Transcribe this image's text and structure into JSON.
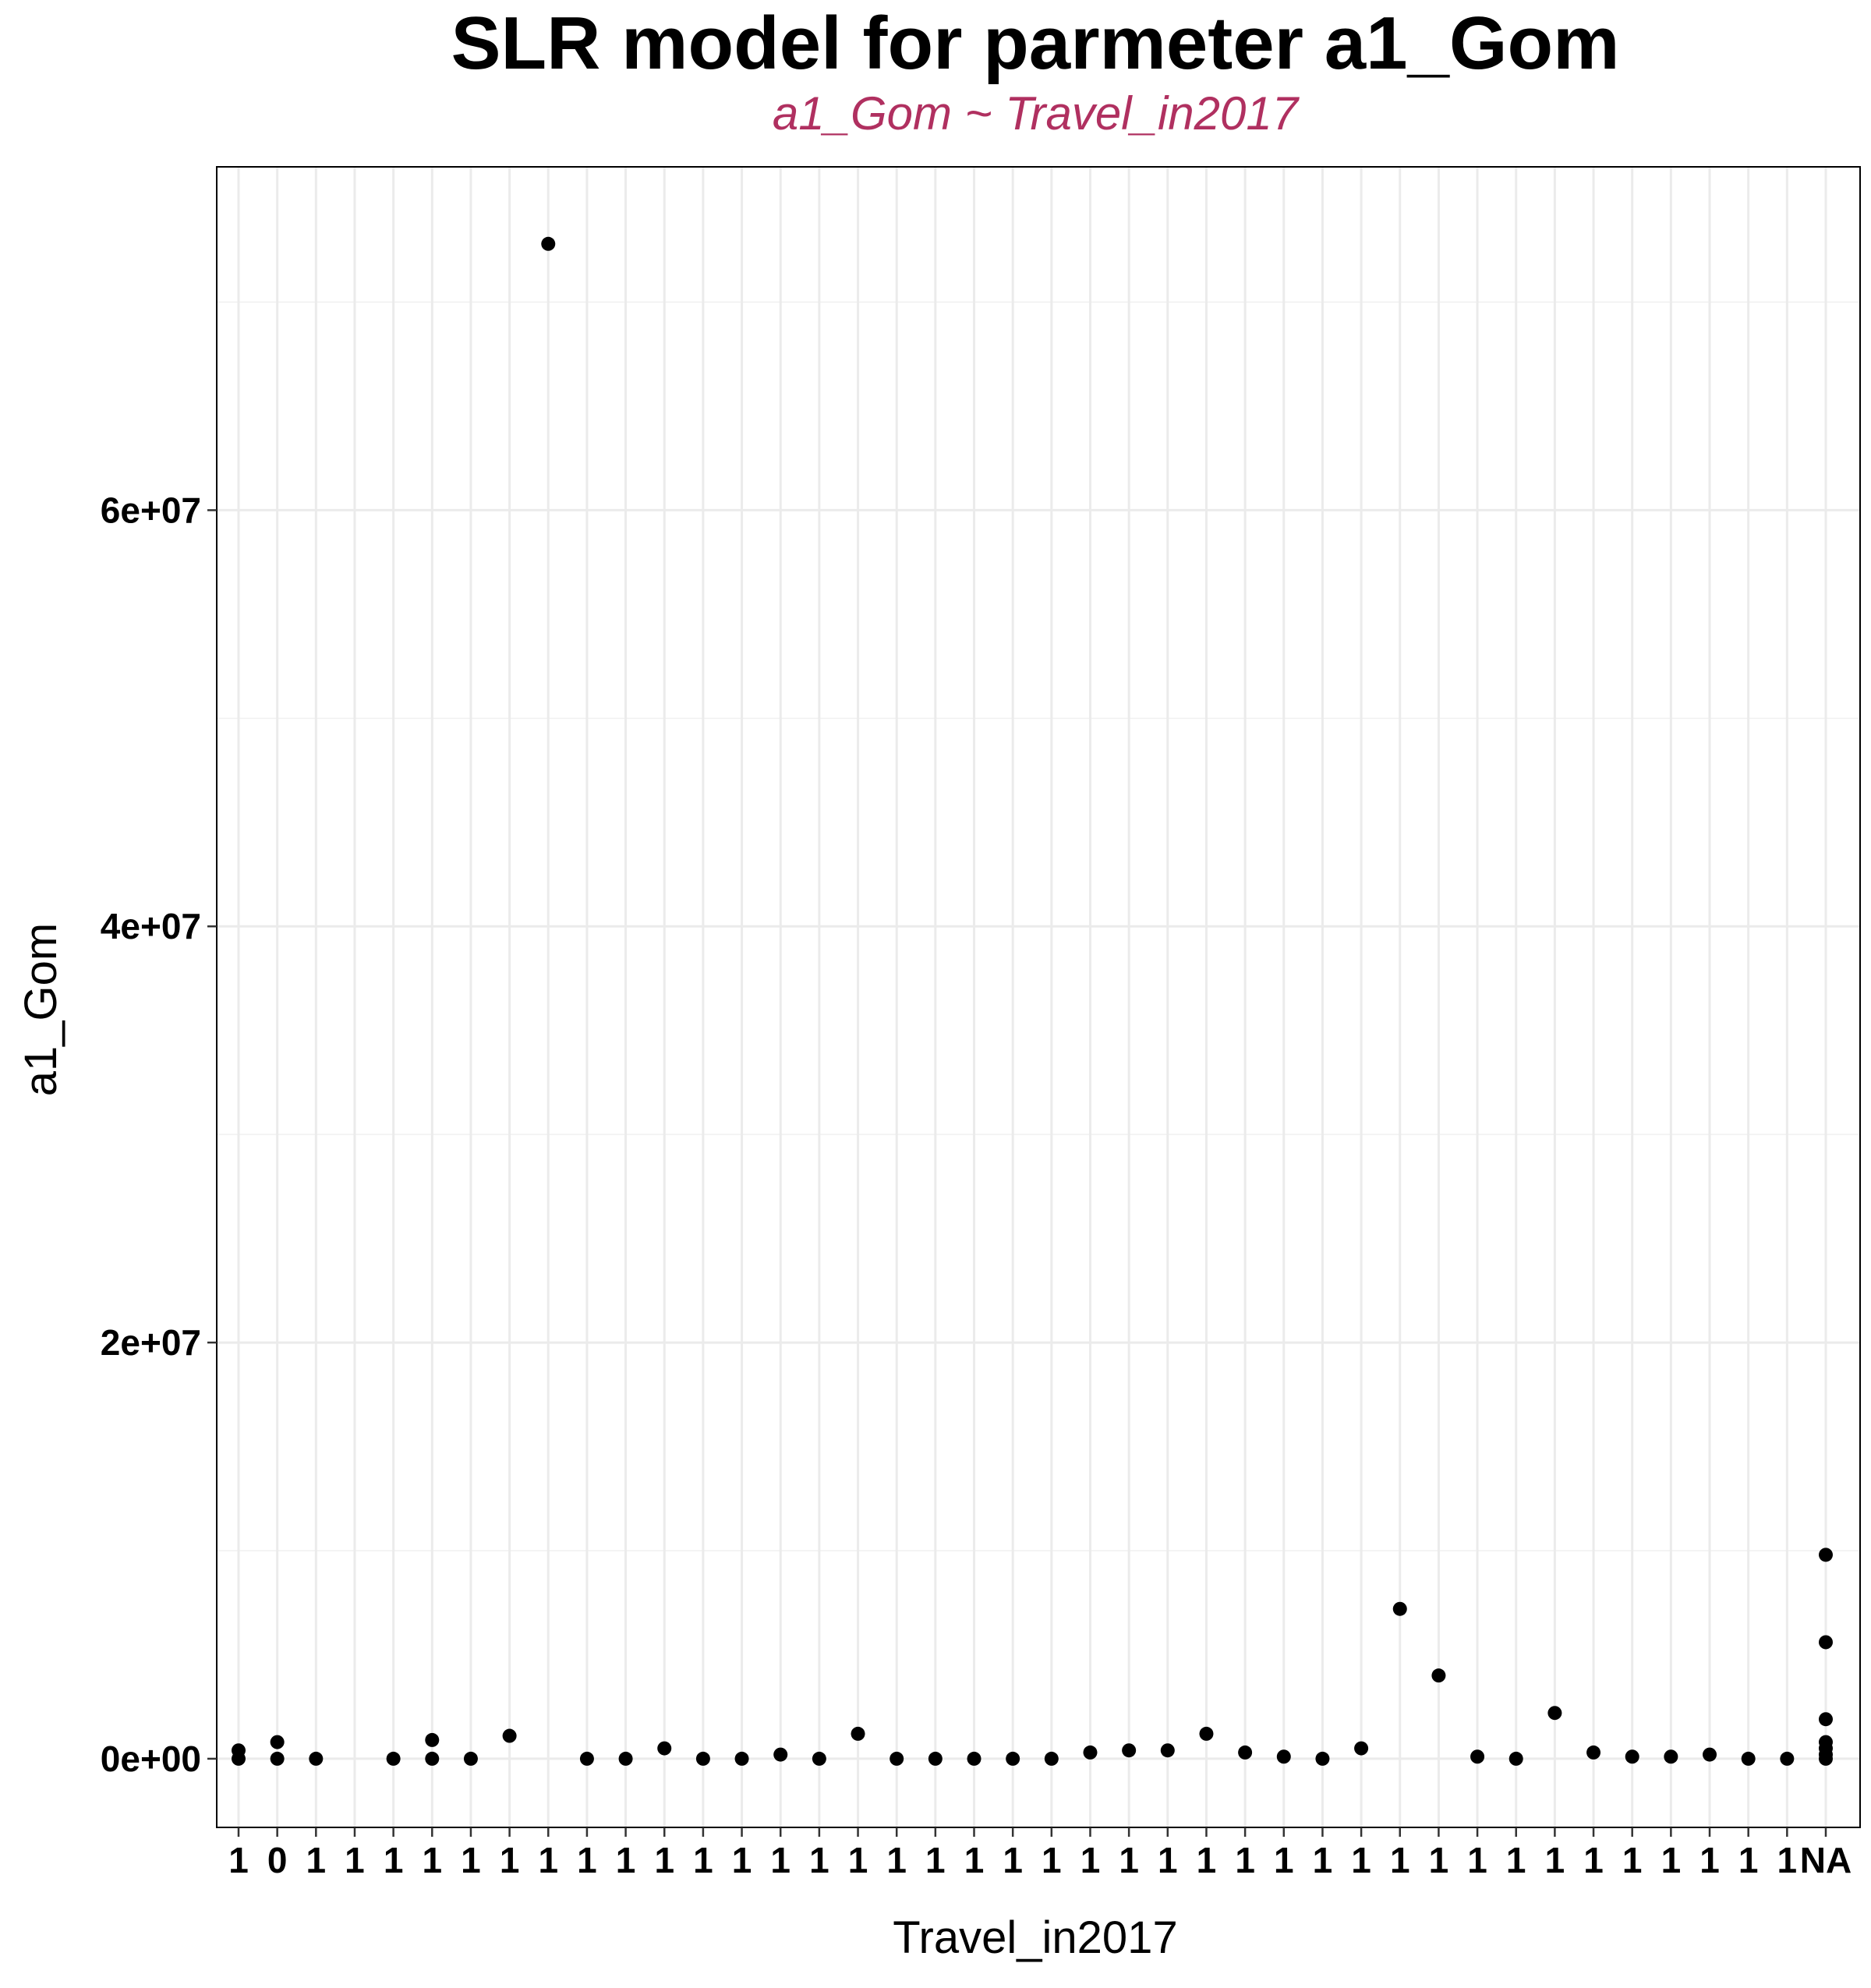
{
  "chart_data": {
    "type": "scatter",
    "title": "SLR model for parmeter a1_Gom",
    "subtitle": "a1_Gom ~ Travel_in2017",
    "xlabel": "Travel_in2017",
    "ylabel": "a1_Gom",
    "y_tick_values": [
      0,
      20000000,
      40000000,
      60000000
    ],
    "y_tick_labels": [
      "0e+00",
      "2e+07",
      "4e+07",
      "6e+07"
    ],
    "ylim": [
      -3300000,
      76500000
    ],
    "x_scale": "categorical",
    "n_categories": 42,
    "x_tick_labels": [
      "1",
      "0",
      "1",
      "1",
      "1",
      "1",
      "1",
      "1",
      "1",
      "1",
      "1",
      "1",
      "1",
      "1",
      "1",
      "1",
      "1",
      "1",
      "1",
      "1",
      "1",
      "1",
      "1",
      "1",
      "1",
      "1",
      "1",
      "1",
      "1",
      "1",
      "1",
      "1",
      "1",
      "1",
      "1",
      "1",
      "1",
      "1",
      "1",
      "1",
      "1",
      "NA"
    ],
    "points": [
      {
        "x": 1,
        "y": 400000
      },
      {
        "x": 1,
        "y": 0
      },
      {
        "x": 2,
        "y": 800000
      },
      {
        "x": 2,
        "y": 0
      },
      {
        "x": 3,
        "y": 0
      },
      {
        "x": 5,
        "y": 0
      },
      {
        "x": 6,
        "y": 900000
      },
      {
        "x": 6,
        "y": 0
      },
      {
        "x": 7,
        "y": 0
      },
      {
        "x": 8,
        "y": 1100000
      },
      {
        "x": 9,
        "y": 72800000
      },
      {
        "x": 10,
        "y": 0
      },
      {
        "x": 11,
        "y": 0
      },
      {
        "x": 12,
        "y": 500000
      },
      {
        "x": 13,
        "y": 0
      },
      {
        "x": 14,
        "y": 0
      },
      {
        "x": 15,
        "y": 200000
      },
      {
        "x": 16,
        "y": 0
      },
      {
        "x": 17,
        "y": 1200000
      },
      {
        "x": 18,
        "y": 0
      },
      {
        "x": 19,
        "y": 0
      },
      {
        "x": 20,
        "y": 0
      },
      {
        "x": 21,
        "y": 0
      },
      {
        "x": 22,
        "y": 0
      },
      {
        "x": 23,
        "y": 300000
      },
      {
        "x": 24,
        "y": 400000
      },
      {
        "x": 25,
        "y": 400000
      },
      {
        "x": 26,
        "y": 1200000
      },
      {
        "x": 27,
        "y": 300000
      },
      {
        "x": 28,
        "y": 100000
      },
      {
        "x": 29,
        "y": 0
      },
      {
        "x": 30,
        "y": 500000
      },
      {
        "x": 31,
        "y": 7200000
      },
      {
        "x": 32,
        "y": 4000000
      },
      {
        "x": 33,
        "y": 100000
      },
      {
        "x": 34,
        "y": 0
      },
      {
        "x": 35,
        "y": 2200000
      },
      {
        "x": 36,
        "y": 300000
      },
      {
        "x": 37,
        "y": 100000
      },
      {
        "x": 38,
        "y": 100000
      },
      {
        "x": 39,
        "y": 200000
      },
      {
        "x": 40,
        "y": 0
      },
      {
        "x": 41,
        "y": 0
      },
      {
        "x": 42,
        "y": 9800000
      },
      {
        "x": 42,
        "y": 5600000
      },
      {
        "x": 42,
        "y": 1900000
      },
      {
        "x": 42,
        "y": 800000
      },
      {
        "x": 42,
        "y": 500000
      },
      {
        "x": 42,
        "y": 200000
      },
      {
        "x": 42,
        "y": 0
      }
    ],
    "point_color": "#000000",
    "grid": true,
    "legend": "none"
  }
}
